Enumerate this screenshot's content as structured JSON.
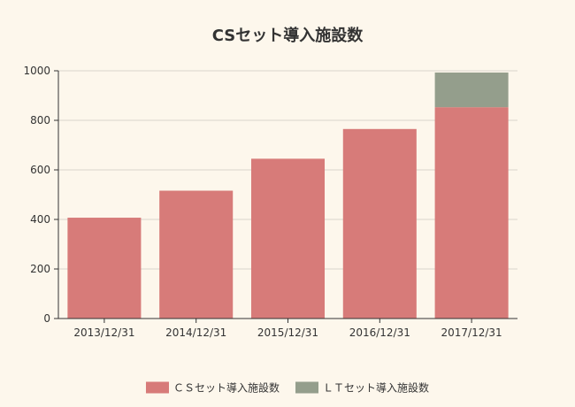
{
  "chart_data": {
    "type": "bar",
    "stacked": true,
    "title": "CSセット導入施設数",
    "xlabel": "",
    "ylabel": "",
    "categories": [
      "2013/12/31",
      "2014/12/31",
      "2015/12/31",
      "2016/12/31",
      "2017/12/31"
    ],
    "series": [
      {
        "name": "ＣＳセット導入施設数",
        "color": "#d77b79",
        "values": [
          407,
          516,
          645,
          765,
          853
        ]
      },
      {
        "name": "ＬＴセット導入施設数",
        "color": "#949e8c",
        "values": [
          0,
          0,
          0,
          0,
          140
        ]
      }
    ],
    "ylim": [
      0,
      1000
    ],
    "yticks": [
      0,
      200,
      400,
      600,
      800,
      1000
    ],
    "grid": true,
    "legend_position": "bottom"
  }
}
